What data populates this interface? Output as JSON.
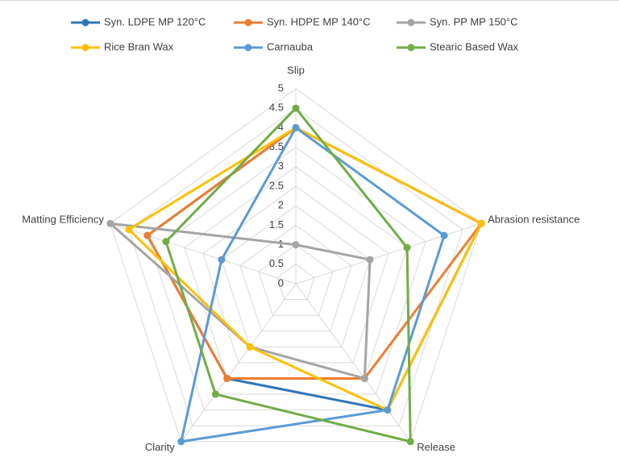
{
  "chart_data": {
    "type": "radar",
    "categories": [
      "Slip",
      "Abrasion resistance",
      "Release",
      "Clarity",
      "Matting Efficiency"
    ],
    "rlim": [
      0,
      5
    ],
    "rticks": [
      0,
      0.5,
      1,
      1.5,
      2,
      2.5,
      3,
      3.5,
      4,
      4.5,
      5
    ],
    "grid": true,
    "legend": "top",
    "series": [
      {
        "name": "Syn. LDPE MP 120°C",
        "color": "#2e75b6",
        "values": [
          4,
          5,
          4,
          3,
          4
        ]
      },
      {
        "name": "Syn. HDPE MP 140°C",
        "color": "#ed7d31",
        "values": [
          4,
          5,
          3,
          3,
          4
        ]
      },
      {
        "name": "Syn. PP MP 150°C",
        "color": "#a5a5a5",
        "values": [
          1,
          2,
          3,
          2,
          5
        ]
      },
      {
        "name": "Rice Bran Wax",
        "color": "#ffc000",
        "values": [
          4,
          5,
          4,
          2,
          4.5
        ]
      },
      {
        "name": "Carnauba",
        "color": "#5b9bd5",
        "values": [
          4,
          4,
          4,
          5,
          2
        ]
      },
      {
        "name": "Stearic Based Wax",
        "color": "#70ad47",
        "values": [
          4.5,
          3,
          5,
          3.5,
          3.5
        ]
      }
    ]
  }
}
